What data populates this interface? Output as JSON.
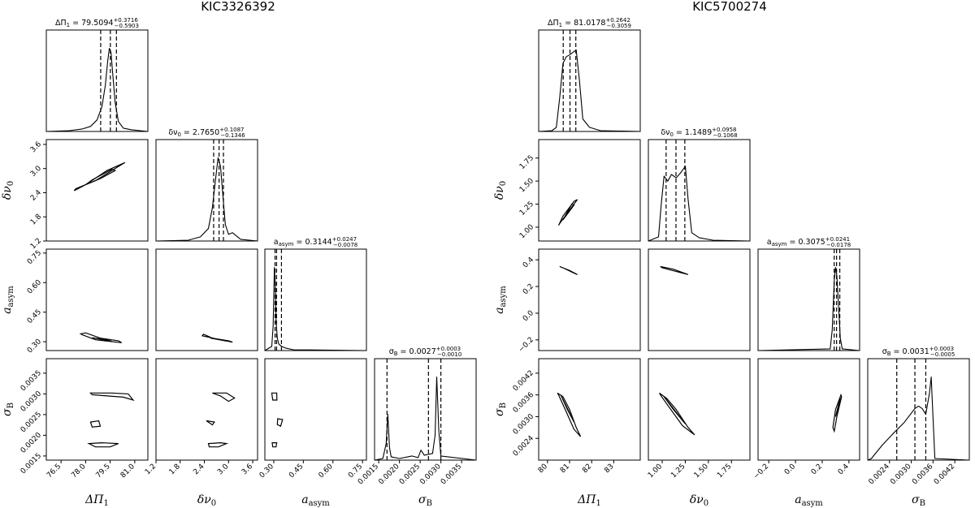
{
  "chart_data": [
    {
      "type": "corner",
      "title": "KIC3326392",
      "parameters": [
        {
          "key": "dpi1",
          "label": "ΔΠ₁",
          "range": [
            75.6,
            81.8
          ],
          "ticks": [
            76.5,
            78.0,
            79.5,
            81.0
          ],
          "tick_labels": [
            "76.5",
            "78.0",
            "79.5",
            "81.0"
          ],
          "posterior": {
            "median": 79.5094,
            "plus": 0.3716,
            "minus": 0.5903,
            "median_str": "79.5094",
            "plus_str": "0.3716",
            "minus_str": "0.5903",
            "label": "ΔΠ₁"
          }
        },
        {
          "key": "dnu0",
          "label": "δν₀",
          "range": [
            1.2,
            3.72
          ],
          "ticks": [
            1.2,
            1.8,
            2.4,
            3.0,
            3.6
          ],
          "tick_labels": [
            "1.2",
            "1.8",
            "2.4",
            "3.0",
            "3.6"
          ],
          "posterior": {
            "median": 2.765,
            "plus": 0.1087,
            "minus": 0.1346,
            "median_str": "2.7650",
            "plus_str": "0.1087",
            "minus_str": "0.1346",
            "label": "δν₀"
          }
        },
        {
          "key": "aasym",
          "label": "a_asym",
          "range": [
            0.255,
            0.77
          ],
          "ticks": [
            0.3,
            0.45,
            0.6,
            0.75
          ],
          "tick_labels": [
            "0.30",
            "0.45",
            "0.60",
            "0.75"
          ],
          "posterior": {
            "median": 0.3144,
            "plus": 0.0247,
            "minus": 0.0078,
            "median_str": "0.3144",
            "plus_str": "0.0247",
            "minus_str": "0.0078",
            "label": "a_asym"
          }
        },
        {
          "key": "sigB",
          "label": "σ_B",
          "range": [
            0.0014,
            0.00385
          ],
          "ticks": [
            0.0015,
            0.002,
            0.0025,
            0.003,
            0.0035
          ],
          "tick_labels": [
            "0.0015",
            "0.0020",
            "0.0025",
            "0.0030",
            "0.0035"
          ],
          "posterior": {
            "median": 0.0027,
            "plus": 0.0003,
            "minus": 0.001,
            "median_str": "0.0027",
            "plus_str": "0.0003",
            "minus_str": "0.0010",
            "label": "σ_B"
          }
        }
      ],
      "histograms": {
        "dpi1": {
          "x": [
            75.6,
            77.0,
            77.8,
            78.3,
            78.7,
            79.0,
            79.2,
            79.35,
            79.45,
            79.55,
            79.65,
            79.8,
            80.0,
            80.3,
            80.8,
            81.8
          ],
          "y": [
            0,
            0.01,
            0.03,
            0.06,
            0.14,
            0.3,
            0.55,
            0.85,
            1.0,
            0.95,
            0.7,
            0.35,
            0.12,
            0.04,
            0.02,
            0
          ]
        },
        "dnu0": {
          "x": [
            1.2,
            2.0,
            2.3,
            2.5,
            2.6,
            2.68,
            2.74,
            2.8,
            2.86,
            2.92,
            3.0,
            3.1,
            3.3,
            3.72
          ],
          "y": [
            0,
            0.01,
            0.05,
            0.15,
            0.4,
            0.75,
            1.0,
            0.9,
            0.55,
            0.2,
            0.08,
            0.1,
            0.02,
            0
          ]
        },
        "aasym": {
          "x": [
            0.255,
            0.29,
            0.297,
            0.303,
            0.308,
            0.312,
            0.318,
            0.325,
            0.34,
            0.36,
            0.4,
            0.77
          ],
          "y": [
            0,
            0.05,
            0.3,
            1.0,
            0.8,
            0.35,
            0.15,
            0.08,
            0.05,
            0.03,
            0.01,
            0
          ]
        },
        "sigB": {
          "x": [
            0.0014,
            0.0016,
            0.00168,
            0.00172,
            0.00176,
            0.0018,
            0.002,
            0.0023,
            0.00245,
            0.00252,
            0.0026,
            0.0028,
            0.00286,
            0.0029,
            0.00295,
            0.003,
            0.00385
          ],
          "y": [
            0,
            0.02,
            0.2,
            0.55,
            0.15,
            0.04,
            0.02,
            0.05,
            0.03,
            0.12,
            0.06,
            0.08,
            0.3,
            1.0,
            0.35,
            0.05,
            0
          ]
        }
      },
      "contours": {
        "dnu0|dpi1": [
          [
            [
              77.4,
              2.5
            ],
            [
              78.6,
              2.7
            ],
            [
              80.2,
              3.1
            ],
            [
              80.4,
              3.15
            ],
            [
              79.3,
              2.95
            ],
            [
              78.0,
              2.6
            ],
            [
              77.3,
              2.45
            ]
          ],
          [
            [
              78.0,
              2.6
            ],
            [
              78.9,
              2.75
            ],
            [
              79.8,
              2.95
            ],
            [
              79.6,
              2.98
            ],
            [
              78.4,
              2.72
            ]
          ]
        ],
        "aasym|dpi1": [
          [
            [
              77.8,
              0.335
            ],
            [
              78.6,
              0.31
            ],
            [
              80.2,
              0.295
            ],
            [
              80.0,
              0.305
            ],
            [
              78.9,
              0.318
            ],
            [
              78.0,
              0.345
            ],
            [
              77.7,
              0.34
            ]
          ],
          [
            [
              78.4,
              0.32
            ],
            [
              79.6,
              0.302
            ],
            [
              79.3,
              0.31
            ]
          ]
        ],
        "aasym|dnu0": [
          [
            [
              2.35,
              0.33
            ],
            [
              2.8,
              0.31
            ],
            [
              3.1,
              0.298
            ],
            [
              3.0,
              0.305
            ],
            [
              2.6,
              0.318
            ],
            [
              2.38,
              0.338
            ]
          ],
          [
            [
              2.55,
              0.318
            ],
            [
              2.95,
              0.303
            ],
            [
              2.8,
              0.31
            ]
          ]
        ],
        "sigB|dpi1": [
          [
            [
              78.3,
              0.00302
            ],
            [
              79.6,
              0.00302
            ],
            [
              80.6,
              0.003
            ],
            [
              80.9,
              0.00285
            ],
            [
              80.3,
              0.00292
            ],
            [
              79.0,
              0.00296
            ],
            [
              78.4,
              0.00298
            ]
          ],
          [
            [
              78.2,
              0.0018
            ],
            [
              79.0,
              0.00182
            ],
            [
              80.0,
              0.0018
            ],
            [
              79.5,
              0.00172
            ],
            [
              78.6,
              0.00172
            ]
          ],
          [
            [
              78.3,
              0.00232
            ],
            [
              78.8,
              0.00235
            ],
            [
              78.9,
              0.00222
            ],
            [
              78.4,
              0.0022
            ]
          ]
        ],
        "sigB|dnu0": [
          [
            [
              2.6,
              0.00302
            ],
            [
              2.95,
              0.00302
            ],
            [
              3.15,
              0.0029
            ],
            [
              3.0,
              0.00282
            ],
            [
              2.8,
              0.00295
            ]
          ],
          [
            [
              2.5,
              0.0018
            ],
            [
              2.8,
              0.00182
            ],
            [
              2.95,
              0.0018
            ],
            [
              2.75,
              0.00172
            ],
            [
              2.52,
              0.00172
            ]
          ],
          [
            [
              2.45,
              0.00235
            ],
            [
              2.65,
              0.00232
            ],
            [
              2.6,
              0.00225
            ]
          ]
        ],
        "sigB|aasym": [
          [
            [
              0.29,
              0.00302
            ],
            [
              0.315,
              0.00302
            ],
            [
              0.316,
              0.00285
            ],
            [
              0.295,
              0.00285
            ]
          ],
          [
            [
              0.292,
              0.00182
            ],
            [
              0.315,
              0.00182
            ],
            [
              0.312,
              0.00172
            ],
            [
              0.295,
              0.00172
            ]
          ],
          [
            [
              0.32,
              0.0024
            ],
            [
              0.345,
              0.00238
            ],
            [
              0.335,
              0.00222
            ],
            [
              0.318,
              0.00226
            ]
          ]
        ]
      }
    },
    {
      "type": "corner",
      "title": "KIC5700274",
      "parameters": [
        {
          "key": "dpi1",
          "label": "ΔΠ₁",
          "range": [
            79.6,
            84.2
          ],
          "ticks": [
            80,
            81,
            82,
            83
          ],
          "tick_labels": [
            "80",
            "81",
            "82",
            "83"
          ],
          "posterior": {
            "median": 81.0178,
            "plus": 0.2642,
            "minus": 0.3059,
            "median_str": "81.0178",
            "plus_str": "0.2642",
            "minus_str": "0.3059",
            "label": "ΔΠ₁"
          }
        },
        {
          "key": "dnu0",
          "label": "δν₀",
          "range": [
            0.85,
            1.95
          ],
          "ticks": [
            1.0,
            1.25,
            1.5,
            1.75
          ],
          "tick_labels": [
            "1.00",
            "1.25",
            "1.50",
            "1.75"
          ],
          "posterior": {
            "median": 1.1489,
            "plus": 0.0958,
            "minus": 0.1068,
            "median_str": "1.1489",
            "plus_str": "0.0958",
            "minus_str": "0.1068",
            "label": "δν₀"
          }
        },
        {
          "key": "aasym",
          "label": "a_asym",
          "range": [
            -0.28,
            0.48
          ],
          "ticks": [
            -0.2,
            0.0,
            0.2,
            0.4
          ],
          "tick_labels": [
            "−0.2",
            "0.0",
            "0.2",
            "0.4"
          ],
          "posterior": {
            "median": 0.3075,
            "plus": 0.0241,
            "minus": 0.0178,
            "median_str": "0.3075",
            "plus_str": "0.0241",
            "minus_str": "0.0178",
            "label": "a_asym"
          }
        },
        {
          "key": "sigB",
          "label": "σ_B",
          "range": [
            0.0018,
            0.0046
          ],
          "ticks": [
            0.0024,
            0.003,
            0.0036,
            0.0042
          ],
          "tick_labels": [
            "0.0024",
            "0.0030",
            "0.0036",
            "0.0042"
          ],
          "posterior": {
            "median": 0.0031,
            "plus": 0.0003,
            "minus": 0.0005,
            "median_str": "0.0031",
            "plus_str": "0.0003",
            "minus_str": "0.0005",
            "label": "σ_B"
          }
        }
      ],
      "histograms": {
        "dpi1": {
          "x": [
            79.6,
            80.2,
            80.4,
            80.55,
            80.7,
            80.85,
            81.0,
            81.15,
            81.3,
            81.45,
            81.6,
            81.9,
            82.4,
            84.2
          ],
          "y": [
            0,
            0.01,
            0.05,
            0.4,
            0.82,
            0.9,
            0.92,
            0.95,
            0.98,
            0.6,
            0.15,
            0.05,
            0.01,
            0
          ]
        },
        "dnu0": {
          "x": [
            0.85,
            0.96,
            0.99,
            1.02,
            1.06,
            1.1,
            1.15,
            1.2,
            1.25,
            1.28,
            1.32,
            1.4,
            1.55,
            1.95
          ],
          "y": [
            0,
            0.05,
            0.45,
            0.78,
            0.72,
            0.8,
            0.76,
            0.82,
            0.9,
            0.5,
            0.1,
            0.04,
            0.01,
            0
          ]
        },
        "aasym": {
          "x": [
            -0.28,
            0.26,
            0.275,
            0.29,
            0.3,
            0.31,
            0.32,
            0.335,
            0.35,
            0.48
          ],
          "y": [
            0,
            0.02,
            0.25,
            0.85,
            1.0,
            0.9,
            0.6,
            0.15,
            0.02,
            0
          ]
        },
        "sigB": {
          "x": [
            0.0018,
            0.0019,
            0.0022,
            0.0025,
            0.0028,
            0.0031,
            0.0032,
            0.0033,
            0.0034,
            0.00345,
            0.0035,
            0.00355,
            0.0036,
            0.00365,
            0.0046
          ],
          "y": [
            0,
            0.02,
            0.18,
            0.32,
            0.45,
            0.62,
            0.65,
            0.62,
            0.55,
            0.68,
            0.8,
            1.0,
            0.5,
            0.02,
            0
          ]
        }
      },
      "contours": {
        "dnu0|dpi1": [
          [
            [
              80.55,
              1.04
            ],
            [
              80.8,
              1.12
            ],
            [
              81.2,
              1.25
            ],
            [
              81.35,
              1.3
            ],
            [
              81.2,
              1.28
            ],
            [
              80.7,
              1.12
            ],
            [
              80.5,
              1.02
            ]
          ],
          [
            [
              80.7,
              1.08
            ],
            [
              81.2,
              1.24
            ],
            [
              81.1,
              1.25
            ]
          ]
        ],
        "aasym|dpi1": [
          [
            [
              80.55,
              0.35
            ],
            [
              81.0,
              0.32
            ],
            [
              81.35,
              0.29
            ],
            [
              81.2,
              0.3
            ],
            [
              80.7,
              0.34
            ]
          ]
        ],
        "aasym|dnu0": [
          [
            [
              0.98,
              0.35
            ],
            [
              1.12,
              0.33
            ],
            [
              1.28,
              0.29
            ],
            [
              1.22,
              0.3
            ],
            [
              1.0,
              0.34
            ]
          ]
        ],
        "sigB|dpi1": [
          [
            [
              80.45,
              0.00365
            ],
            [
              80.7,
              0.00355
            ],
            [
              81.0,
              0.0032
            ],
            [
              81.3,
              0.0027
            ],
            [
              81.5,
              0.00245
            ],
            [
              81.2,
              0.00265
            ],
            [
              80.8,
              0.0032
            ],
            [
              80.5,
              0.0036
            ]
          ],
          [
            [
              80.6,
              0.0036
            ],
            [
              81.2,
              0.00285
            ],
            [
              80.9,
              0.0032
            ]
          ]
        ],
        "sigB|dnu0": [
          [
            [
              0.97,
              0.00365
            ],
            [
              1.05,
              0.0035
            ],
            [
              1.15,
              0.0032
            ],
            [
              1.28,
              0.0027
            ],
            [
              1.35,
              0.0025
            ],
            [
              1.22,
              0.00275
            ],
            [
              1.05,
              0.00335
            ],
            [
              0.98,
              0.0036
            ]
          ],
          [
            [
              1.02,
              0.00355
            ],
            [
              1.25,
              0.0028
            ],
            [
              1.12,
              0.0032
            ]
          ]
        ],
        "sigB|aasym": [
          [
            [
              0.28,
              0.0027
            ],
            [
              0.3,
              0.0032
            ],
            [
              0.34,
              0.0036
            ],
            [
              0.345,
              0.00355
            ],
            [
              0.31,
              0.003
            ],
            [
              0.29,
              0.0026
            ]
          ],
          [
            [
              0.3,
              0.003
            ],
            [
              0.335,
              0.00352
            ],
            [
              0.315,
              0.00318
            ]
          ]
        ]
      }
    }
  ]
}
